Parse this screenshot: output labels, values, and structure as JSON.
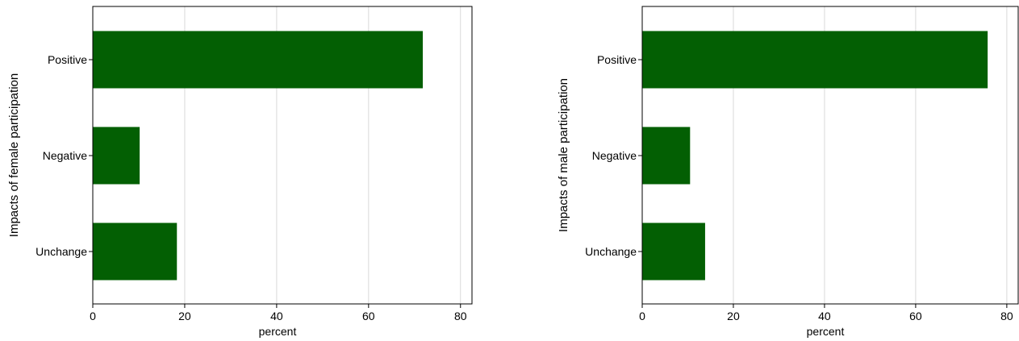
{
  "chart_data": [
    {
      "type": "bar",
      "orientation": "horizontal",
      "categories": [
        "Positive",
        "Negative",
        "Unchange"
      ],
      "values": [
        71.8,
        10.2,
        18.3
      ],
      "ylabel": "Impacts of female participation",
      "xlabel": "percent",
      "xlim": [
        0,
        82.5
      ],
      "xticks": [
        0,
        20,
        40,
        60,
        80
      ],
      "grid": true,
      "bar_color": "#035f03",
      "grid_color": "#d9d9d9"
    },
    {
      "type": "bar",
      "orientation": "horizontal",
      "categories": [
        "Positive",
        "Negative",
        "Unchange"
      ],
      "values": [
        75.8,
        10.5,
        13.8
      ],
      "ylabel": "Impacts of male participation",
      "xlabel": "percent",
      "xlim": [
        0,
        82.5
      ],
      "xticks": [
        0,
        20,
        40,
        60,
        80
      ],
      "grid": true,
      "bar_color": "#035f03",
      "grid_color": "#d9d9d9"
    }
  ]
}
